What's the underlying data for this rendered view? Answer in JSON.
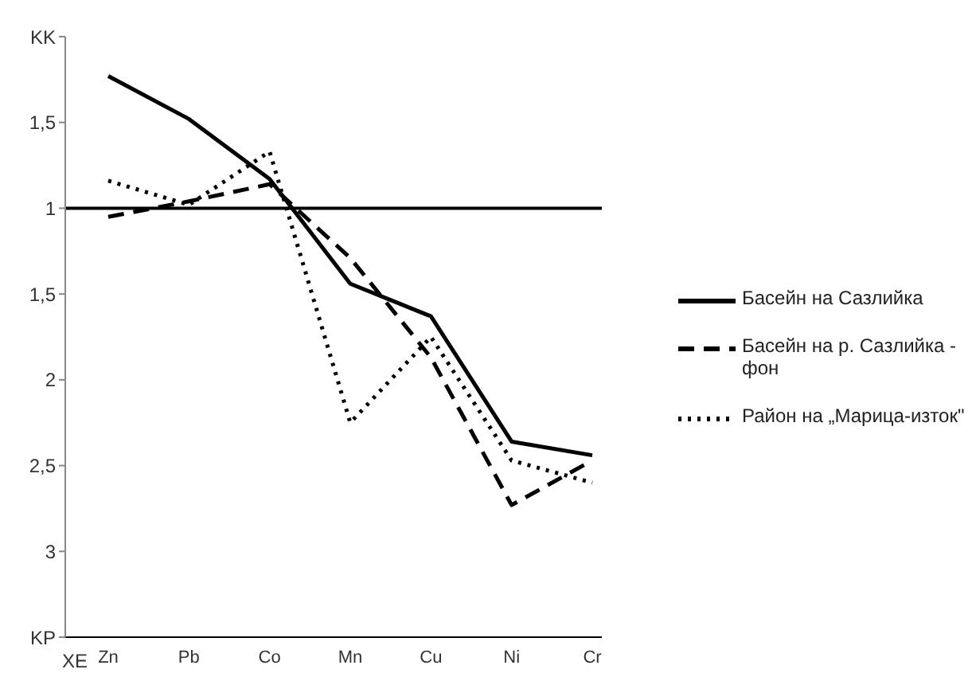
{
  "chart_data": {
    "type": "line",
    "xlabel": "XE",
    "categories": [
      "Zn",
      "Pb",
      "Co",
      "Mn",
      "Cu",
      "Ni",
      "Cr"
    ],
    "ylim": [
      -1.5,
      2
    ],
    "yticks": [
      {
        "value": 2,
        "label": "KK"
      },
      {
        "value": 1.5,
        "label": "1,5"
      },
      1
    ],
    "y2lim": [
      3.5,
      0
    ],
    "y2ticks": [
      {
        "value": 1.5,
        "label": "1,5"
      },
      2,
      {
        "value": 2.5,
        "label": "2,5"
      },
      3,
      {
        "value": 3.5,
        "label": "KP"
      }
    ],
    "series": [
      {
        "name": "Басейн на Сазлийка",
        "color": "#000000",
        "line_style": "solid",
        "values": [
          1.77,
          1.52,
          1.17,
          0.56,
          0.37,
          -0.36,
          -0.44
        ]
      },
      {
        "name": "Басейн на р. Сазлийка - фон",
        "color": "#000000",
        "line_style": "dashed",
        "values": [
          0.95,
          1.04,
          1.14,
          0.71,
          0.13,
          -0.73,
          -0.47
        ]
      },
      {
        "name": "Район на „Марица-изток\"",
        "color": "#000000",
        "line_style": "dotted",
        "values": [
          1.16,
          1.02,
          1.33,
          -0.25,
          0.25,
          -0.47,
          -0.6
        ]
      }
    ],
    "ref_lines": [
      {
        "axis": "y",
        "value": 1,
        "color": "#000000"
      }
    ],
    "grid": false,
    "legend": "right",
    "marker": "none"
  }
}
